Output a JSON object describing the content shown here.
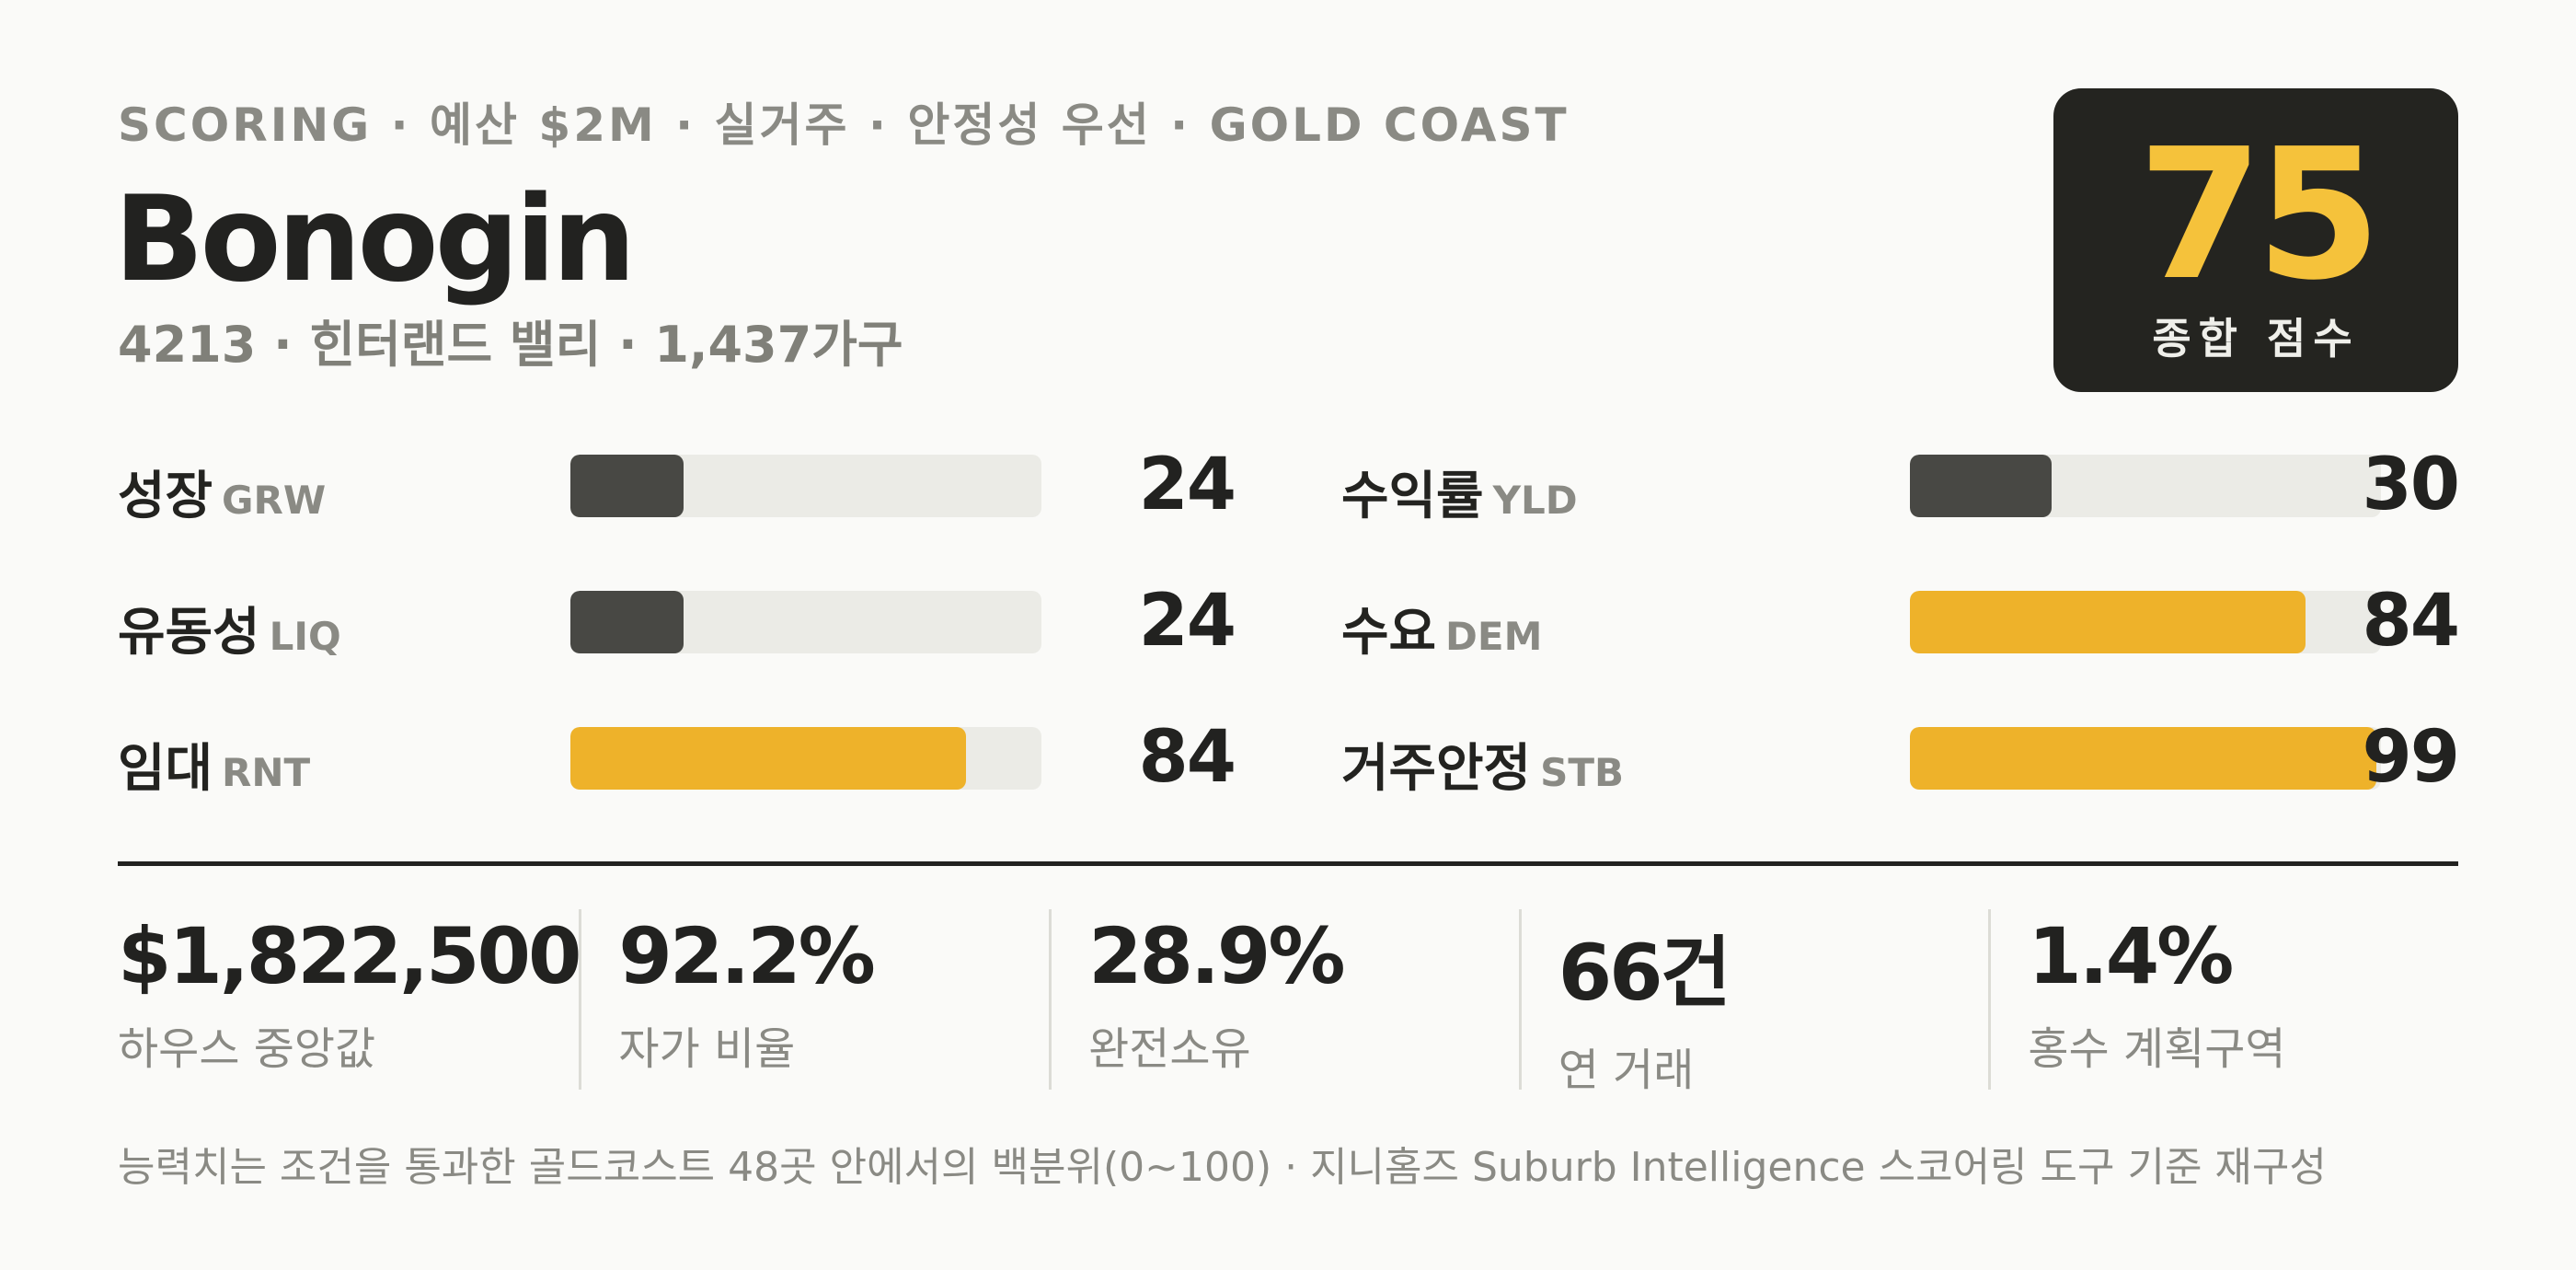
{
  "header": {
    "kicker": "SCORING · 예산 $2M · 실거주 · 안정성 우선 · GOLD COAST",
    "title": "Bonogin",
    "subtitle": "4213 · 힌터랜드 밸리 · 1,437가구"
  },
  "score_card": {
    "value": "75",
    "label": "종합 점수"
  },
  "metrics": [
    {
      "label": "성장",
      "code": "GRW",
      "value": "24",
      "score": 24,
      "tone": "low"
    },
    {
      "label": "수익률",
      "code": "YLD",
      "value": "30",
      "score": 30,
      "tone": "low"
    },
    {
      "label": "유동성",
      "code": "LIQ",
      "value": "24",
      "score": 24,
      "tone": "low"
    },
    {
      "label": "수요",
      "code": "DEM",
      "value": "84",
      "score": 84,
      "tone": "high"
    },
    {
      "label": "임대",
      "code": "RNT",
      "value": "84",
      "score": 84,
      "tone": "high"
    },
    {
      "label": "거주안정",
      "code": "STB",
      "value": "99",
      "score": 99,
      "tone": "high"
    }
  ],
  "stats": [
    {
      "value": "$1,822,500",
      "label": "하우스 중앙값"
    },
    {
      "value": "92.2%",
      "label": "자가 비율"
    },
    {
      "value": "28.9%",
      "label": "완전소유"
    },
    {
      "value": "66건",
      "label": "연 거래"
    },
    {
      "value": "1.4%",
      "label": "홍수 계획구역"
    }
  ],
  "footnote": "능력치는 조건을 통과한 골드코스트 48곳 안에서의 백분위(0~100) · 지니홈즈 Suburb Intelligence 스코어링 도구 기준 재구성",
  "colors": {
    "background": "#fafaf8",
    "ink": "#222220",
    "accent": "#f5c23b",
    "bar_high": "#eeb22a",
    "bar_low": "#484844",
    "track": "#ebebe6"
  }
}
